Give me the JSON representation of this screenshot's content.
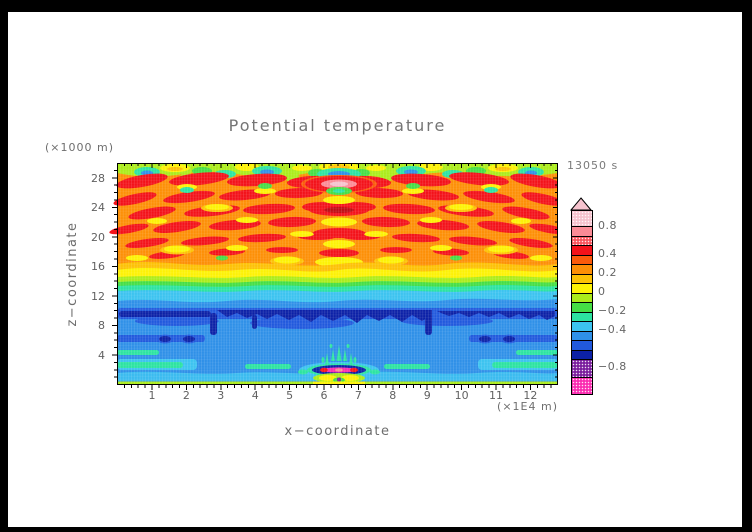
{
  "title": "Potential temperature",
  "time_label": "13050 s",
  "axes": {
    "x": {
      "label": "x−coordinate",
      "unit": "(×1E4 m)",
      "major_ticks": [
        1,
        2,
        3,
        4,
        5,
        6,
        7,
        8,
        9,
        10,
        11,
        12
      ],
      "minor_step": 0.2,
      "min": 0,
      "max": 12.8
    },
    "z": {
      "label": "z−coordinate",
      "unit": "(×1000 m)",
      "major_ticks": [
        4,
        8,
        12,
        16,
        20,
        24,
        28
      ],
      "minor_step": 1,
      "min": 0,
      "max": 30
    }
  },
  "colorbar": {
    "overflow_triangle_color": "#f6c3ce",
    "tick_labels": [
      {
        "text": "0.8",
        "offset": 15
      },
      {
        "text": "0.4",
        "offset": 43.5
      },
      {
        "text": "0.2",
        "offset": 62.5
      },
      {
        "text": "0",
        "offset": 81.5
      },
      {
        "text": "−0.2",
        "offset": 100.5
      },
      {
        "text": "−0.4",
        "offset": 119.5
      },
      {
        "text": "−0.8",
        "offset": 156
      }
    ],
    "segments": [
      {
        "color": "#f6c3ce",
        "h": 15,
        "stipple": true
      },
      {
        "color": "#fb8b96",
        "h": 9.5,
        "stipple": false
      },
      {
        "color": "#fa555e",
        "h": 9.5,
        "stipple": true
      },
      {
        "color": "#f3121a",
        "h": 9.5,
        "stipple": false
      },
      {
        "color": "#fb5a0b",
        "h": 9.5,
        "stipple": false
      },
      {
        "color": "#fd8f06",
        "h": 9.5,
        "stipple": false
      },
      {
        "color": "#fdc105",
        "h": 9.5,
        "stipple": false
      },
      {
        "color": "#fdf205",
        "h": 9.5,
        "stipple": false
      },
      {
        "color": "#abec1b",
        "h": 9.5,
        "stipple": false
      },
      {
        "color": "#45de45",
        "h": 9.5,
        "stipple": false
      },
      {
        "color": "#2ce3a1",
        "h": 9.5,
        "stipple": false
      },
      {
        "color": "#3cc3f0",
        "h": 9.5,
        "stipple": false
      },
      {
        "color": "#2f90e8",
        "h": 9.5,
        "stipple": false
      },
      {
        "color": "#2159dd",
        "h": 9.5,
        "stipple": false
      },
      {
        "color": "#0c21a7",
        "h": 9.5,
        "stipple": false
      },
      {
        "color": "#7b1f9e",
        "h": 17.5,
        "stipple": true
      },
      {
        "color": "#fb2cb1",
        "h": 17,
        "stipple": true
      }
    ]
  },
  "chart_data": {
    "type": "filled_contour",
    "title": "Potential temperature",
    "time": "13050 s",
    "xlabel": "x−coordinate",
    "x_unit": "×1E4 m",
    "x_ticks": [
      1,
      2,
      3,
      4,
      5,
      6,
      7,
      8,
      9,
      10,
      11,
      12
    ],
    "xlim": [
      0,
      12.8
    ],
    "ylabel": "z−coordinate",
    "y_unit": "×1000 m",
    "y_ticks": [
      4,
      8,
      12,
      16,
      20,
      24,
      28
    ],
    "ylim": [
      0,
      30
    ],
    "colorbar_tick_values": [
      0.8,
      0.4,
      0.2,
      0,
      -0.2,
      -0.4,
      -0.8
    ],
    "palette_top_to_bottom": [
      "#f6c3ce",
      "#fb8b96",
      "#fa555e",
      "#f3121a",
      "#fb5a0b",
      "#fd8f06",
      "#fdc105",
      "#fdf205",
      "#abec1b",
      "#45de45",
      "#2ce3a1",
      "#3cc3f0",
      "#2f90e8",
      "#2159dd",
      "#0c21a7",
      "#7b1f9e",
      "#fb2cb1"
    ],
    "field_description": [
      "Upper region z≈16–30 km: warm perturbation (orange base ≈0.2–0.3) filled with chevron-shaped red blobs (≈0.4–0.6) radiating symmetrically from x≈6.4, yellow oval accents (≈0–0.1) and a light-pink core (≈0.8) at x≈6.4, z≈27",
      "Top strip z≈28.5–30: green/chartreuse band (≈-0.1–0) containing cyan and blue ovals (≈-0.3 to -0.5) and yellow ovals",
      "Transition z≈13–16: horizontal yellow, green and turquoise bands (values passing through 0 to -0.3)",
      "Lower region z≈0–13: blue field (≈-0.4 to -0.5) with a jagged navy band (≈-0.7) at z≈8.5–10, paired navy dots at z≈6 near x≈1.8 and x≈10.8, turquoise streaks near z≈3–4.5 and lighter blue near the surface",
      "Surface feature at x≈6.4, z≈1–3: navy ellipse containing a magenta/red core (≈-0.9), turquoise splash spikes above, yellow-green patches and a purple dot below",
      "Thin yellow-green strip along the bottom boundary"
    ]
  }
}
